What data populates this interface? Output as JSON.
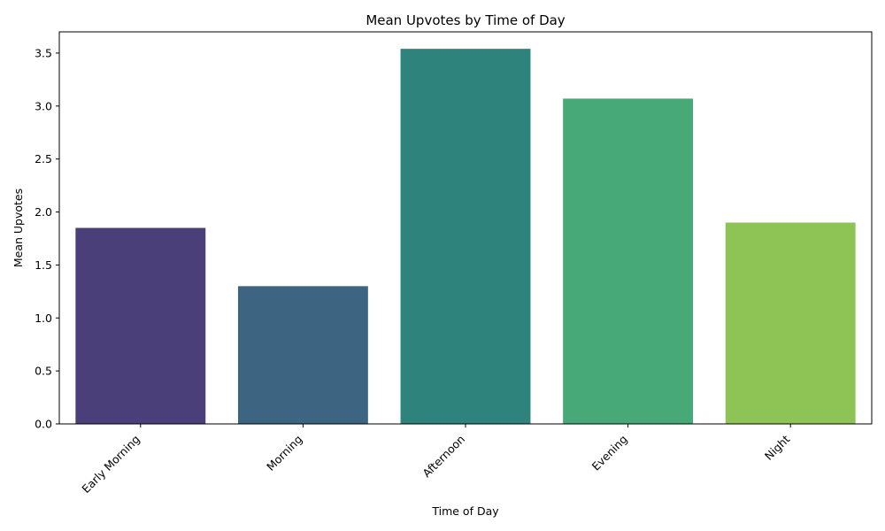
{
  "chart_data": {
    "type": "bar",
    "title": "Mean Upvotes by Time of Day",
    "xlabel": "Time of Day",
    "ylabel": "Mean Upvotes",
    "categories": [
      "Early Morning",
      "Morning",
      "Afternoon",
      "Evening",
      "Night"
    ],
    "values": [
      1.85,
      1.3,
      3.54,
      3.07,
      1.9
    ],
    "colors": [
      "#4a3f78",
      "#3d6481",
      "#2e847d",
      "#48a978",
      "#8ec456"
    ],
    "ylim": [
      0,
      3.7
    ],
    "yticks": [
      "0.0",
      "0.5",
      "1.0",
      "1.5",
      "2.0",
      "2.5",
      "3.0",
      "3.5"
    ],
    "grid": false,
    "legend": "none"
  }
}
